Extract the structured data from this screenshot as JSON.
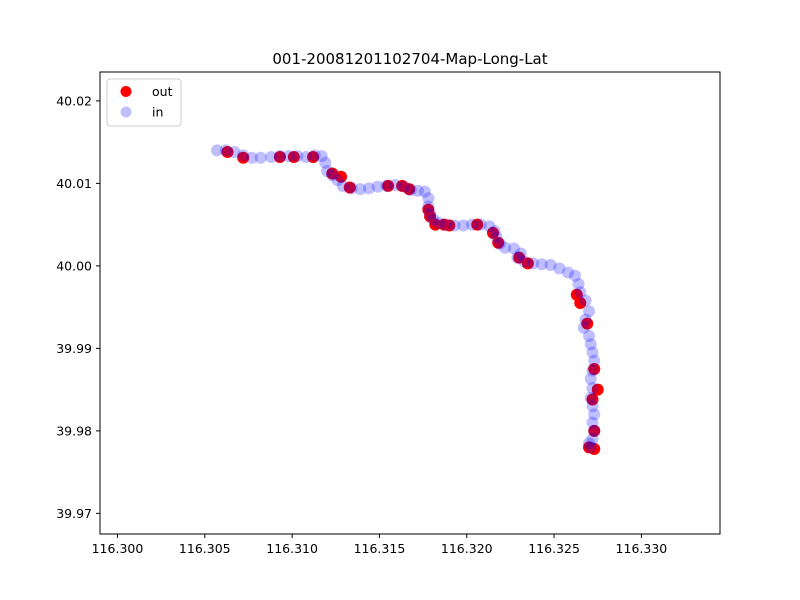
{
  "chart_data": {
    "type": "scatter",
    "title": "001-20081201102704-Map-Long-Lat",
    "xlabel": "",
    "ylabel": "",
    "xlim": [
      116.299,
      116.3345
    ],
    "ylim": [
      39.9675,
      40.0235
    ],
    "x_ticks": [
      "116.300",
      "116.305",
      "116.310",
      "116.315",
      "116.320",
      "116.325",
      "116.330"
    ],
    "y_ticks": [
      "39.97",
      "39.98",
      "39.99",
      "40.00",
      "40.01",
      "40.02"
    ],
    "grid": false,
    "legend_position": "top-left",
    "series": [
      {
        "name": "out",
        "color": "#ff0000",
        "points": [
          [
            116.3063,
            40.0138
          ],
          [
            116.3072,
            40.0131
          ],
          [
            116.3093,
            40.0132
          ],
          [
            116.3101,
            40.0132
          ],
          [
            116.3112,
            40.0132
          ],
          [
            116.3123,
            40.0112
          ],
          [
            116.3128,
            40.0108
          ],
          [
            116.3133,
            40.0095
          ],
          [
            116.3155,
            40.0097
          ],
          [
            116.3163,
            40.0097
          ],
          [
            116.3167,
            40.0093
          ],
          [
            116.3178,
            40.0068
          ],
          [
            116.3179,
            40.006
          ],
          [
            116.3182,
            40.005
          ],
          [
            116.3187,
            40.005
          ],
          [
            116.319,
            40.0049
          ],
          [
            116.3206,
            40.005
          ],
          [
            116.3215,
            40.004
          ],
          [
            116.3218,
            40.0028
          ],
          [
            116.323,
            40.001
          ],
          [
            116.3235,
            40.0003
          ],
          [
            116.3263,
            39.9965
          ],
          [
            116.3265,
            39.9955
          ],
          [
            116.3269,
            39.993
          ],
          [
            116.3273,
            39.9875
          ],
          [
            116.3275,
            39.985
          ],
          [
            116.3272,
            39.9838
          ],
          [
            116.3273,
            39.98
          ],
          [
            116.327,
            39.978
          ],
          [
            116.3273,
            39.9778
          ]
        ]
      },
      {
        "name": "in",
        "color": "#0000ff",
        "points": [
          [
            116.3057,
            40.014
          ],
          [
            116.3062,
            40.014
          ],
          [
            116.3067,
            40.0138
          ],
          [
            116.3072,
            40.0134
          ],
          [
            116.3077,
            40.0131
          ],
          [
            116.3082,
            40.0131
          ],
          [
            116.3088,
            40.0132
          ],
          [
            116.3093,
            40.0133
          ],
          [
            116.3098,
            40.0133
          ],
          [
            116.3103,
            40.0133
          ],
          [
            116.3108,
            40.0132
          ],
          [
            116.3113,
            40.0134
          ],
          [
            116.3117,
            40.0133
          ],
          [
            116.3119,
            40.0125
          ],
          [
            116.312,
            40.0115
          ],
          [
            116.3123,
            40.011
          ],
          [
            116.3126,
            40.0104
          ],
          [
            116.3129,
            40.0097
          ],
          [
            116.3134,
            40.0094
          ],
          [
            116.3139,
            40.0093
          ],
          [
            116.3144,
            40.0094
          ],
          [
            116.3149,
            40.0096
          ],
          [
            116.3154,
            40.0097
          ],
          [
            116.3159,
            40.0098
          ],
          [
            116.3164,
            40.0096
          ],
          [
            116.3168,
            40.0092
          ],
          [
            116.3172,
            40.0091
          ],
          [
            116.3176,
            40.009
          ],
          [
            116.3178,
            40.0082
          ],
          [
            116.3178,
            40.0072
          ],
          [
            116.3179,
            40.0063
          ],
          [
            116.3181,
            40.0056
          ],
          [
            116.3184,
            40.0052
          ],
          [
            116.3188,
            40.005
          ],
          [
            116.3193,
            40.0049
          ],
          [
            116.3198,
            40.0049
          ],
          [
            116.3203,
            40.005
          ],
          [
            116.3208,
            40.005
          ],
          [
            116.3213,
            40.0048
          ],
          [
            116.3216,
            40.0042
          ],
          [
            116.3217,
            40.0035
          ],
          [
            116.3219,
            40.0027
          ],
          [
            116.3222,
            40.0022
          ],
          [
            116.3227,
            40.0021
          ],
          [
            116.3231,
            40.0015
          ],
          [
            116.3229,
            40.001
          ],
          [
            116.3233,
            40.0005
          ],
          [
            116.3238,
            40.0003
          ],
          [
            116.3243,
            40.0002
          ],
          [
            116.3248,
            40.0001
          ],
          [
            116.3253,
            39.9997
          ],
          [
            116.3258,
            39.9992
          ],
          [
            116.3262,
            39.9988
          ],
          [
            116.3264,
            39.9978
          ],
          [
            116.3265,
            39.9968
          ],
          [
            116.3268,
            39.9958
          ],
          [
            116.327,
            39.9945
          ],
          [
            116.3268,
            39.9935
          ],
          [
            116.3267,
            39.9925
          ],
          [
            116.327,
            39.9915
          ],
          [
            116.3271,
            39.9905
          ],
          [
            116.3272,
            39.9895
          ],
          [
            116.3273,
            39.9885
          ],
          [
            116.3272,
            39.9873
          ],
          [
            116.3271,
            39.9863
          ],
          [
            116.3272,
            39.9852
          ],
          [
            116.3271,
            39.984
          ],
          [
            116.3272,
            39.983
          ],
          [
            116.3273,
            39.982
          ],
          [
            116.3272,
            39.981
          ],
          [
            116.3273,
            39.98
          ],
          [
            116.3272,
            39.979
          ],
          [
            116.327,
            39.9785
          ],
          [
            116.3271,
            39.978
          ]
        ]
      }
    ]
  }
}
